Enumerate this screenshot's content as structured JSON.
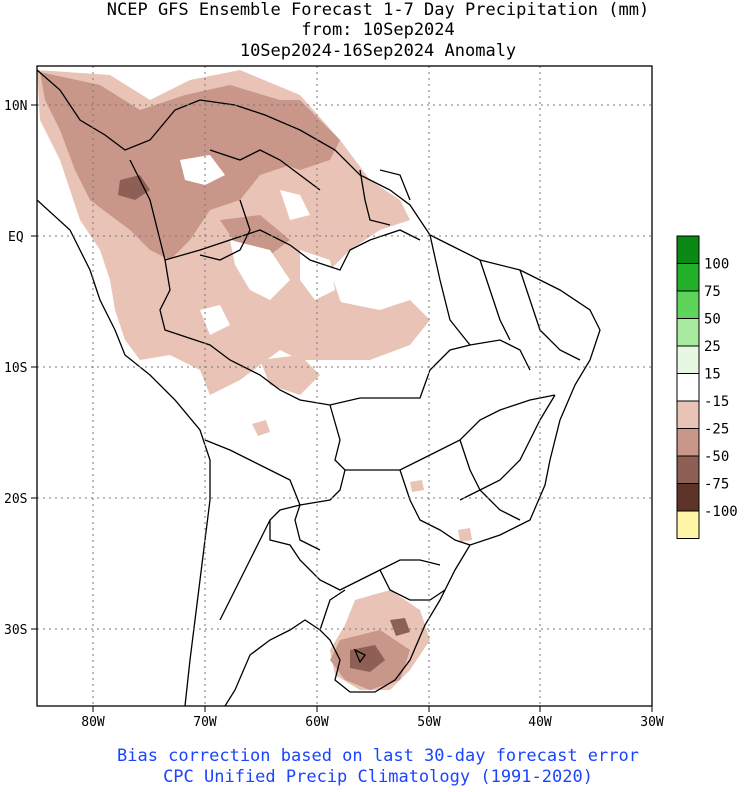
{
  "title": {
    "line1": "NCEP GFS Ensemble Forecast 1-7 Day Precipitation (mm)",
    "line2": "from: 10Sep2024",
    "line3": "10Sep2024-16Sep2024 Anomaly"
  },
  "axes": {
    "lat_labels": [
      "10N",
      "EQ",
      "10S",
      "20S",
      "30S"
    ],
    "lon_labels": [
      "80W",
      "70W",
      "60W",
      "50W",
      "40W",
      "30W"
    ]
  },
  "legend": {
    "labels": [
      "100",
      "75",
      "50",
      "25",
      "15",
      "-15",
      "-25",
      "-50",
      "-75",
      "-100"
    ],
    "colors": [
      "#0a8a14",
      "#22b02a",
      "#5fd45a",
      "#a8eba0",
      "#e6f8e2",
      "#ffffff",
      "#e9c3b6",
      "#c8978a",
      "#8e5f54",
      "#5e3328",
      "#fff6a8"
    ]
  },
  "footer": {
    "line1": "Bias correction based on last 30-day forecast error",
    "line2": "CPC Unified Precip Climatology (1991-2020)"
  }
}
